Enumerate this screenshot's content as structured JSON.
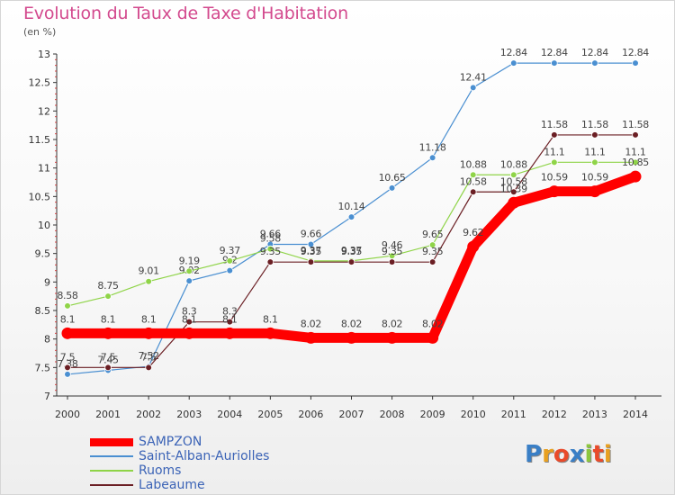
{
  "chart_data": {
    "type": "line",
    "title": "Evolution du Taux de Taxe d'Habitation",
    "subtitle": "(en %)",
    "x": [
      "2000",
      "2001",
      "2002",
      "2003",
      "2004",
      "2005",
      "2006",
      "2007",
      "2008",
      "2009",
      "2010",
      "2011",
      "2012",
      "2013",
      "2014"
    ],
    "ylim": [
      7,
      13
    ],
    "yticks": [
      "7",
      "7.5",
      "8",
      "8.5",
      "9",
      "9.5",
      "10",
      "10.5",
      "11",
      "11.5",
      "12",
      "12.5",
      "13"
    ],
    "grid": false,
    "legend_position": "bottom-left",
    "series": [
      {
        "name": "Saint-Alban-Auriolles",
        "color": "#4a8fd1",
        "values": [
          7.38,
          7.45,
          7.52,
          9.02,
          9.2,
          9.66,
          9.66,
          10.14,
          10.65,
          11.18,
          12.41,
          12.84,
          12.84,
          12.84,
          12.84
        ],
        "labels": [
          "7.38",
          "7.45",
          "7.52",
          "9.02",
          "9.2",
          "9.66",
          "9.66",
          "10.14",
          "10.65",
          "11.18",
          "12.41",
          "12.84",
          "12.84",
          "12.84",
          "12.84"
        ]
      },
      {
        "name": "Ruoms",
        "color": "#8fd448",
        "values": [
          8.58,
          8.75,
          9.01,
          9.19,
          9.37,
          9.58,
          9.37,
          9.37,
          9.46,
          9.65,
          10.88,
          10.88,
          11.1,
          11.1,
          11.1
        ],
        "labels": [
          "8.58",
          "8.75",
          "9.01",
          "9.19",
          "9.37",
          "9.58",
          "9.37",
          "9.37",
          "9.46",
          "9.65",
          "10.88",
          "10.88",
          "11.1",
          "11.1",
          "11.1"
        ]
      },
      {
        "name": "Labeaume",
        "color": "#6b1f24",
        "values": [
          7.5,
          7.5,
          7.5,
          8.3,
          8.3,
          9.35,
          9.35,
          9.35,
          9.35,
          9.35,
          10.58,
          10.58,
          11.58,
          11.58,
          11.58
        ],
        "labels": [
          "7.5",
          "7.5",
          "7.5",
          "8.3",
          "8.3",
          "9.35",
          "9.35",
          "9.35",
          "9.35",
          "9.35",
          "10.58",
          "10.58",
          "11.58",
          "11.58",
          "11.58"
        ]
      },
      {
        "name": "SAMPZON",
        "color": "#ff0000",
        "values": [
          8.1,
          8.1,
          8.1,
          8.1,
          8.1,
          8.1,
          8.02,
          8.02,
          8.02,
          8.02,
          9.62,
          10.39,
          10.59,
          10.59,
          10.85
        ],
        "labels": [
          "8.1",
          "8.1",
          "8.1",
          "8.1",
          "8.1",
          "8.1",
          "8.02",
          "8.02",
          "8.02",
          "8.02",
          "9.62",
          "10.39",
          "10.59",
          "10.59",
          "10.85"
        ]
      }
    ],
    "legend_order": [
      "SAMPZON",
      "Saint-Alban-Auriolles",
      "Ruoms",
      "Labeaume"
    ]
  },
  "logo": {
    "text": "Proxiti",
    "letters": [
      {
        "ch": "P",
        "color": "#3a7fc6"
      },
      {
        "ch": "r",
        "color": "#e8a020"
      },
      {
        "ch": "o",
        "color": "#e94a2a"
      },
      {
        "ch": "x",
        "color": "#3a7fc6"
      },
      {
        "ch": "i",
        "color": "#8cc63e"
      },
      {
        "ch": "t",
        "color": "#e94a2a"
      },
      {
        "ch": "i",
        "color": "#e8a020"
      }
    ]
  }
}
